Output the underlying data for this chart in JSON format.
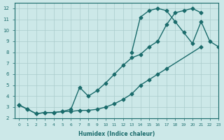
{
  "xlabel": "Humidex (Indice chaleur)",
  "xlim": [
    -0.5,
    23
  ],
  "ylim": [
    2,
    12.5
  ],
  "xticks": [
    0,
    1,
    2,
    3,
    4,
    5,
    6,
    7,
    8,
    9,
    10,
    11,
    12,
    13,
    14,
    15,
    16,
    17,
    18,
    19,
    20,
    21,
    22,
    23
  ],
  "yticks": [
    2,
    3,
    4,
    5,
    6,
    7,
    8,
    9,
    10,
    11,
    12
  ],
  "bg_color": "#cce8e8",
  "line_color": "#1a6b6b",
  "grid_color": "#aacccc",
  "curve1_x": [
    0,
    1,
    2,
    3,
    4,
    5,
    6,
    7,
    8,
    9,
    10,
    11,
    12,
    13,
    14,
    15,
    16,
    17,
    21
  ],
  "curve1_y": [
    3.2,
    2.8,
    2.4,
    2.5,
    2.5,
    2.6,
    2.6,
    2.7,
    2.7,
    2.8,
    3.0,
    3.3,
    3.7,
    4.2,
    5.0,
    5.5,
    6.0,
    6.5,
    8.5
  ],
  "curve2_x": [
    0,
    1,
    2,
    3,
    4,
    5,
    6,
    7,
    8,
    9,
    10,
    11,
    12,
    13,
    14,
    15,
    16,
    17,
    18,
    19,
    20,
    21
  ],
  "curve2_y": [
    3.2,
    2.8,
    2.4,
    2.5,
    2.5,
    2.6,
    2.8,
    4.8,
    4.0,
    4.5,
    5.2,
    6.0,
    6.8,
    7.5,
    7.8,
    8.5,
    9.0,
    10.5,
    11.6,
    11.8,
    12.0,
    11.6
  ],
  "curve3_x": [
    13,
    14,
    15,
    16,
    17,
    18,
    19,
    20,
    21,
    22,
    23
  ],
  "curve3_y": [
    8.0,
    11.2,
    11.8,
    12.0,
    11.8,
    10.8,
    9.8,
    8.8,
    10.8,
    9.0,
    8.5
  ]
}
